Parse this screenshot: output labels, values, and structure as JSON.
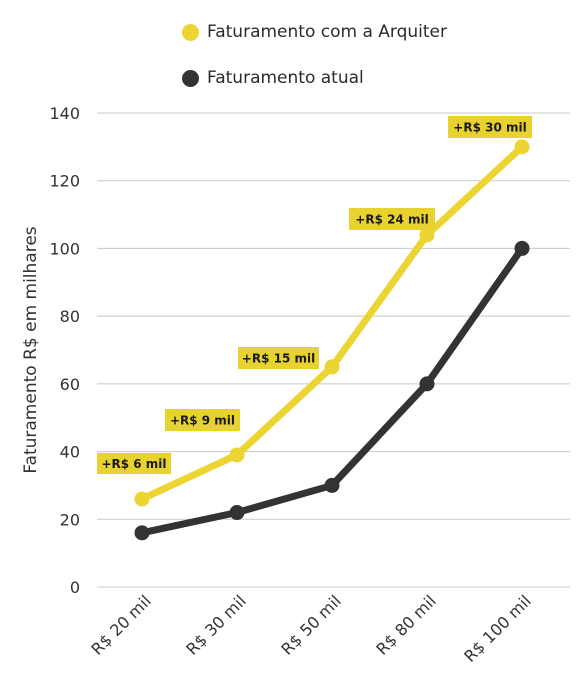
{
  "chart_data": {
    "type": "line",
    "title": "",
    "xlabel": "",
    "ylabel": "Faturamento R$ em milhares",
    "categories": [
      "R$ 20 mil",
      "R$ 30 mil",
      "R$ 50 mil",
      "R$ 80 mil",
      "R$ 100 mil"
    ],
    "y_ticks": [
      "0",
      "20",
      "40",
      "60",
      "80",
      "100",
      "120",
      "140"
    ],
    "ylim": [
      0,
      140
    ],
    "grid": "horizontal",
    "legend_position": "top",
    "series": [
      {
        "name": "Faturamento com a Arquiter",
        "color": "#ecd433",
        "values": [
          26,
          39,
          65,
          104,
          130
        ]
      },
      {
        "name": "Faturamento atual",
        "color": "#333333",
        "values": [
          16,
          22,
          30,
          60,
          100
        ]
      }
    ],
    "annotations": [
      "+R$ 6 mil",
      "+R$ 9 mil",
      "+R$ 15 mil",
      "+R$ 24 mil",
      "+R$ 30 mil"
    ],
    "annotation_color": "#e8d230"
  }
}
